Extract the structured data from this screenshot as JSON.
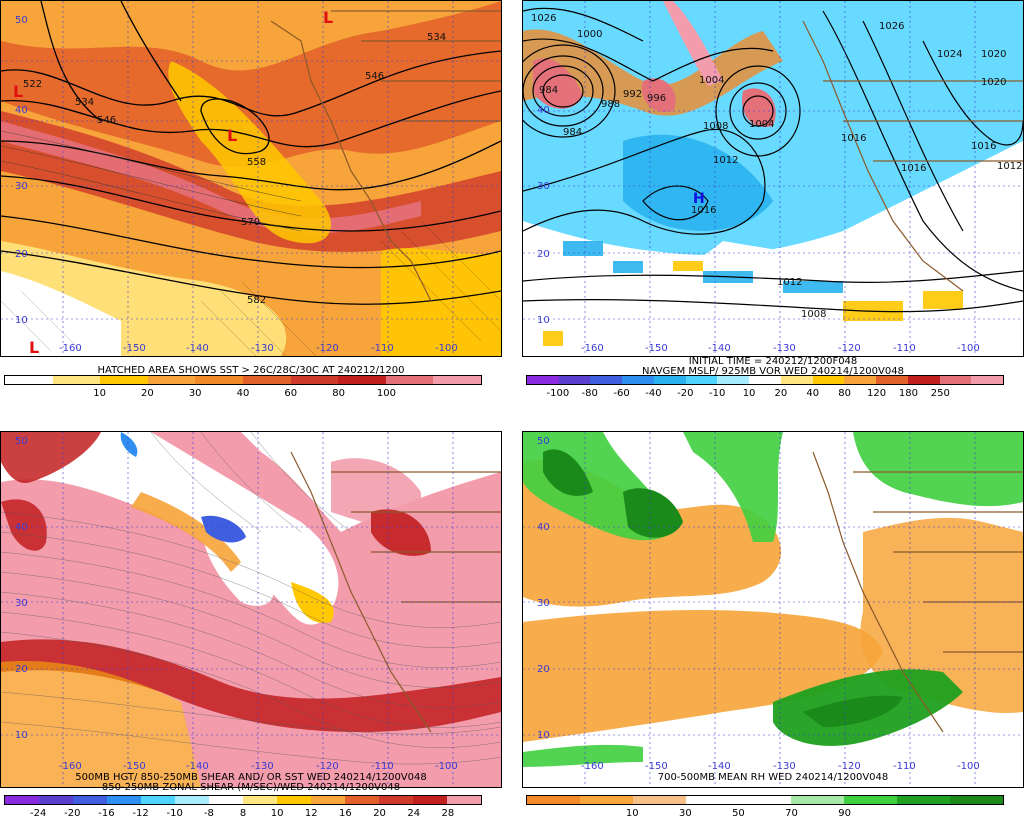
{
  "panels": [
    {
      "id": "p1",
      "caption_lines": [
        "HATCHED AREA SHOWS SST > 26C/28C/30C AT 240212/1200"
      ],
      "colorbar": {
        "colors": [
          "#ffffff",
          "#ffe680",
          "#ffc800",
          "#f7a43a",
          "#f28a2a",
          "#e2602a",
          "#cf3a2a",
          "#c21f1f",
          "#e4707a",
          "#f29cac"
        ],
        "tick_labels": [
          "10",
          "20",
          "30",
          "40",
          "60",
          "80",
          "100"
        ]
      },
      "lat_labels": [
        "50",
        "40",
        "30",
        "20",
        "10"
      ],
      "lon_labels": [
        "-160",
        "-150",
        "-140",
        "-130",
        "-120",
        "-110",
        "-100"
      ],
      "contour_labels": [
        "522",
        "534",
        "546",
        "546",
        "534",
        "558",
        "570",
        "582"
      ],
      "pressure_center_labels": [
        "L",
        "L",
        "L",
        "L"
      ]
    },
    {
      "id": "p2",
      "caption_lines": [
        "INITIAL TIME = 240212/1200F048",
        "NAVGEM MSLP/ 925MB VOR WED 240214/1200V048"
      ],
      "colorbar": {
        "colors": [
          "#8a2be2",
          "#5a3fd0",
          "#3f5fe0",
          "#2f8ff0",
          "#2ab3f0",
          "#4fd3ff",
          "#a8ecff",
          "#ffffff",
          "#ffe680",
          "#ffc800",
          "#f7a43a",
          "#e2602a",
          "#c21f1f",
          "#e4707a",
          "#f29cac"
        ],
        "tick_labels": [
          "-100",
          "-80",
          "-60",
          "-40",
          "-20",
          "-10",
          "10",
          "20",
          "40",
          "80",
          "120",
          "180",
          "250"
        ]
      },
      "lat_labels": [
        "40",
        "30",
        "20",
        "10"
      ],
      "lon_labels": [
        "-160",
        "-150",
        "-140",
        "-130",
        "-120",
        "-110",
        "-100"
      ],
      "contour_labels": [
        "1000",
        "1004",
        "988",
        "984",
        "996",
        "1008",
        "1012",
        "1016",
        "1004",
        "1016",
        "1024",
        "1020",
        "1020",
        "1016",
        "1016",
        "1012",
        "1012",
        "1008",
        "984",
        "992",
        "1026",
        "1026"
      ],
      "pressure_center_labels": [
        "H"
      ]
    },
    {
      "id": "p3",
      "caption_lines": [
        "500MB HGT/ 850-250MB SHEAR AND/ OR SST WED 240214/1200V048",
        "850-250MB ZONAL SHEAR (M/SEC)/WED 240214/1200V048"
      ],
      "colorbar": {
        "colors": [
          "#8a2be2",
          "#5a3fd0",
          "#3f5fe0",
          "#2f8ff0",
          "#4fd3ff",
          "#a8ecff",
          "#ffffff",
          "#ffe680",
          "#ffc800",
          "#f7a43a",
          "#e2602a",
          "#cf3a2a",
          "#c21f1f",
          "#f29cac"
        ],
        "tick_labels": [
          "-24",
          "-20",
          "-16",
          "-12",
          "-10",
          "-8",
          "8",
          "10",
          "12",
          "16",
          "20",
          "24",
          "28"
        ]
      },
      "lat_labels": [
        "50",
        "40",
        "30",
        "20",
        "10"
      ],
      "lon_labels": [
        "-160",
        "-150",
        "-140",
        "-130",
        "-120",
        "-110",
        "-100"
      ]
    },
    {
      "id": "p4",
      "caption_lines": [
        "700-500MB MEAN RH WED 240214/1200V048"
      ],
      "colorbar": {
        "colors": [
          "#f28a2a",
          "#f7a43a",
          "#f7c088",
          "#ffffff",
          "#ffffff",
          "#a8e8a8",
          "#3fcf3f",
          "#1fa01f",
          "#1a8a1a"
        ],
        "tick_labels": [
          "10",
          "30",
          "50",
          "70",
          "90"
        ]
      },
      "lat_labels": [
        "50",
        "40",
        "30",
        "20",
        "10"
      ],
      "lon_labels": [
        "-160",
        "-150",
        "-140",
        "-130",
        "-120",
        "-110",
        "-100"
      ]
    }
  ]
}
